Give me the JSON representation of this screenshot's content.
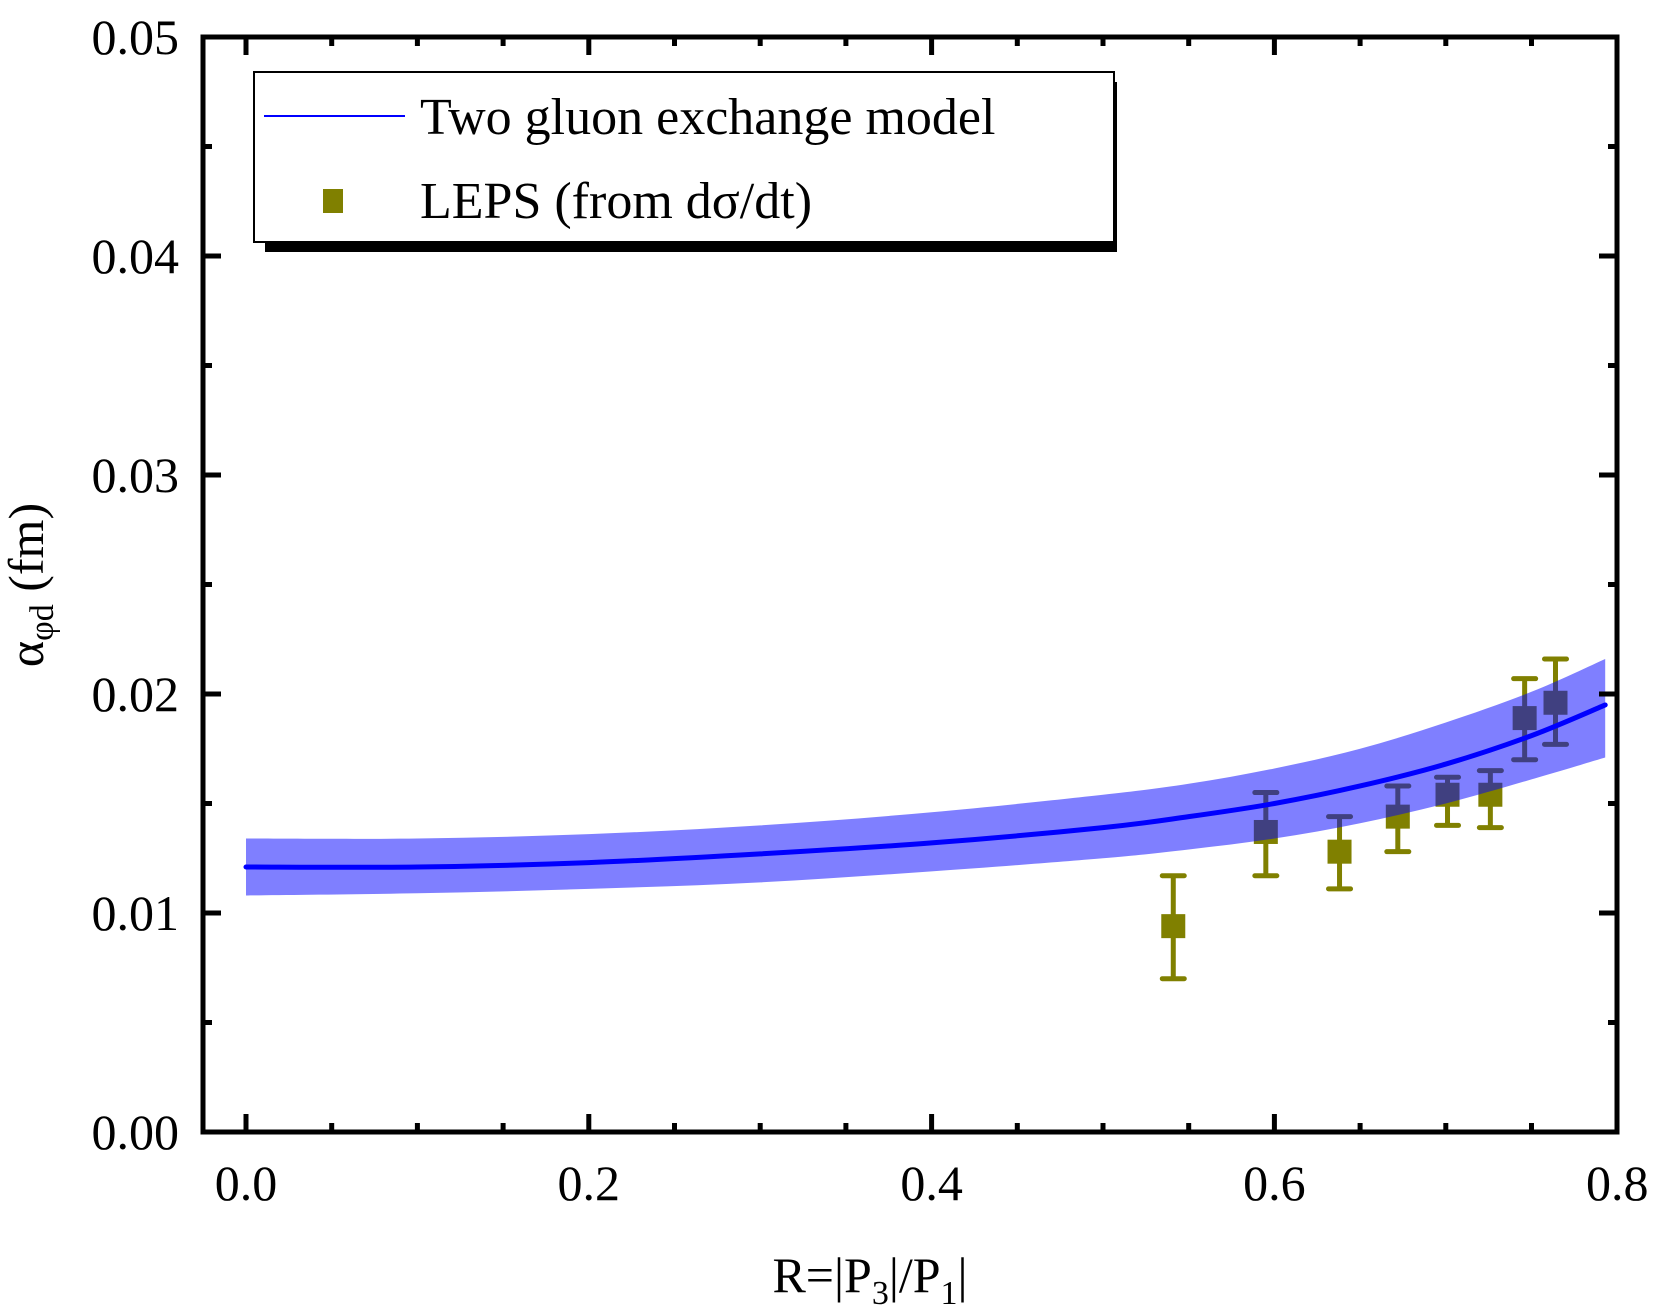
{
  "chart_data": {
    "type": "line",
    "title": "",
    "xlabel": "R=|P3|/P1|",
    "xlabel_parts": {
      "main": "R=|P",
      "sub1": "3",
      "mid": "|/P",
      "sub2": "1",
      "end": "|"
    },
    "ylabel": "α_φd (fm)",
    "ylabel_parts": {
      "main": "α",
      "sub": "φd",
      "unit": " (fm)"
    },
    "xlim": [
      -0.05,
      0.8
    ],
    "ylim": [
      0.0,
      0.05
    ],
    "x_ticks": [
      0.0,
      0.2,
      0.4,
      0.6,
      0.8
    ],
    "x_tick_labels": [
      "0.0",
      "0.2",
      "0.4",
      "0.6",
      "0.8"
    ],
    "x_minor_step": 0.05,
    "y_ticks": [
      0.0,
      0.01,
      0.02,
      0.03,
      0.04,
      0.05
    ],
    "y_tick_labels": [
      "0.00",
      "0.01",
      "0.02",
      "0.03",
      "0.04",
      "0.05"
    ],
    "y_minor_step": 0.005,
    "grid": false,
    "legend_position": "top-left",
    "legend": [
      {
        "label": "Two gluon exchange model",
        "kind": "line",
        "color": "#0000ff"
      },
      {
        "label": "LEPS (from dσ/dt)",
        "kind": "square",
        "color": "#808000"
      }
    ],
    "series": [
      {
        "name": "Two gluon exchange model",
        "kind": "line_with_band",
        "color": "#0000ff",
        "band_color": "#0000ff",
        "band_opacity": 0.5,
        "x": [
          0.0,
          0.1,
          0.2,
          0.3,
          0.4,
          0.5,
          0.55,
          0.6,
          0.65,
          0.7,
          0.75,
          0.793
        ],
        "y": [
          0.0121,
          0.0121,
          0.0123,
          0.0127,
          0.0132,
          0.0139,
          0.0144,
          0.015,
          0.0158,
          0.0168,
          0.0181,
          0.0195
        ],
        "y_low": [
          0.0108,
          0.0109,
          0.0111,
          0.0114,
          0.0119,
          0.0125,
          0.0129,
          0.0134,
          0.0141,
          0.015,
          0.0161,
          0.0171
        ],
        "y_high": [
          0.0134,
          0.0134,
          0.0136,
          0.014,
          0.0146,
          0.0154,
          0.0159,
          0.0166,
          0.0175,
          0.0187,
          0.0201,
          0.0216
        ]
      },
      {
        "name": "LEPS (from dσ/dt)",
        "kind": "scatter_errorbar",
        "color": "#808000",
        "x": [
          0.541,
          0.595,
          0.638,
          0.672,
          0.701,
          0.726,
          0.746,
          0.764
        ],
        "y": [
          0.0094,
          0.0137,
          0.0128,
          0.0144,
          0.0154,
          0.0154,
          0.0189,
          0.0196
        ],
        "err_low": [
          0.007,
          0.0117,
          0.0111,
          0.0128,
          0.014,
          0.0139,
          0.017,
          0.0177
        ],
        "err_high": [
          0.0117,
          0.0155,
          0.0144,
          0.0158,
          0.0162,
          0.0165,
          0.0207,
          0.0216
        ]
      }
    ]
  }
}
